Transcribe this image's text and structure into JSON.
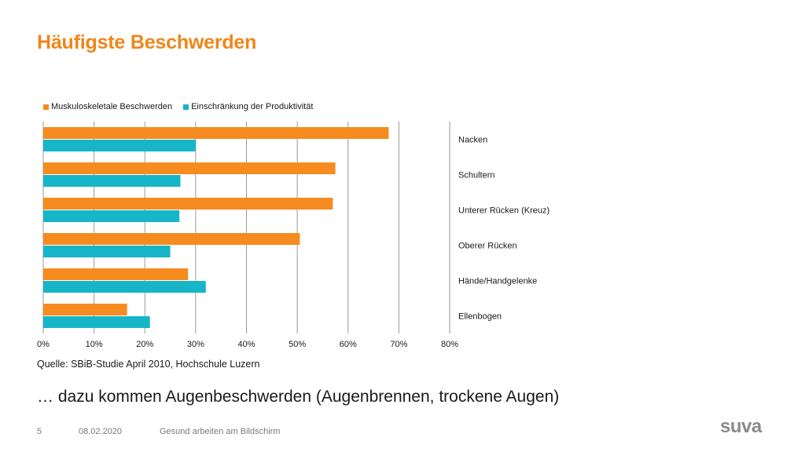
{
  "slide": {
    "title": "Häufigste Beschwerden",
    "source": "Quelle: SBiB-Studie April 2010, Hochschule Luzern",
    "subtitle": "… dazu kommen Augenbeschwerden (Augenbrennen, trockene Augen)",
    "footer": {
      "page_number": "5",
      "date": "08.02.2020",
      "topic": "Gesund arbeiten am Bildschirm"
    },
    "logo": "suva",
    "colors": {
      "title": "#f08519",
      "series1": "#f68b1f",
      "series2": "#17b5c8"
    }
  },
  "chart_data": {
    "type": "bar",
    "orientation": "horizontal",
    "categories": [
      "Nacken",
      "Schultern",
      "Unterer Rücken (Kreuz)",
      "Oberer Rücken",
      "Hände/Handgelenke",
      "Ellenbogen"
    ],
    "series": [
      {
        "name": "Muskuloskeletale Beschwerden",
        "color": "#f68b1f",
        "values": [
          68,
          57.5,
          57,
          50.5,
          28.5,
          16.5
        ]
      },
      {
        "name": "Einschränkung der Produktivität",
        "color": "#17b5c8",
        "values": [
          30,
          27,
          26.8,
          25,
          32,
          21
        ]
      }
    ],
    "xlim": [
      0,
      80
    ],
    "xticks": [
      "0%",
      "10%",
      "20%",
      "30%",
      "40%",
      "50%",
      "60%",
      "70%",
      "80%"
    ],
    "grid": true,
    "legend": "top-left",
    "category_labels": "right"
  }
}
